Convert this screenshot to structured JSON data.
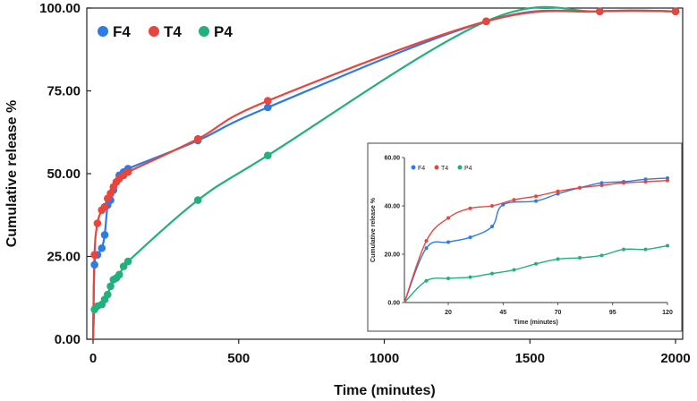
{
  "chart_data": [
    {
      "type": "line",
      "xlabel": "Time (minutes)",
      "ylabel": "Cumulative release %",
      "xlim": [
        0,
        2000
      ],
      "ylim": [
        0,
        100
      ],
      "xticks": [
        0,
        500,
        1000,
        1500,
        2000
      ],
      "xtick_labels": [
        "0",
        "500",
        "1000",
        "1500",
        "2000"
      ],
      "yticks": [
        0,
        25,
        50,
        75,
        100
      ],
      "ytick_labels": [
        "0.00",
        "25.00",
        "50.00",
        "75.00",
        "100.00"
      ],
      "legend_position": "top-left",
      "series": [
        {
          "name": "F4",
          "color": "#2e7be6",
          "points": [
            [
              0,
              0
            ],
            [
              5,
              22.5
            ],
            [
              15,
              25.5
            ],
            [
              30,
              27.5
            ],
            [
              40,
              31.5
            ],
            [
              50,
              40.5
            ],
            [
              60,
              42
            ],
            [
              70,
              45
            ],
            [
              80,
              47.5
            ],
            [
              90,
              49.5
            ],
            [
              105,
              50.5
            ],
            [
              120,
              51.5
            ],
            [
              360,
              60
            ],
            [
              600,
              70
            ],
            [
              1350,
              96
            ],
            [
              1740,
              99
            ],
            [
              2000,
              99
            ]
          ]
        },
        {
          "name": "T4",
          "color": "#e8453c",
          "points": [
            [
              0,
              0
            ],
            [
              5,
              25.5
            ],
            [
              15,
              35
            ],
            [
              30,
              39
            ],
            [
              40,
              40
            ],
            [
              50,
              42.5
            ],
            [
              60,
              44
            ],
            [
              70,
              46
            ],
            [
              80,
              47.5
            ],
            [
              90,
              48.5
            ],
            [
              105,
              49.5
            ],
            [
              120,
              50.5
            ],
            [
              360,
              60.5
            ],
            [
              600,
              72
            ],
            [
              1350,
              96
            ],
            [
              1740,
              99
            ],
            [
              2000,
              99
            ]
          ]
        },
        {
          "name": "P4",
          "color": "#22b07d",
          "points": [
            [
              0,
              0
            ],
            [
              5,
              9
            ],
            [
              15,
              10
            ],
            [
              30,
              10.5
            ],
            [
              40,
              12
            ],
            [
              50,
              13.5
            ],
            [
              60,
              16
            ],
            [
              70,
              18
            ],
            [
              80,
              18.5
            ],
            [
              90,
              19.5
            ],
            [
              105,
              22
            ],
            [
              120,
              23.5
            ],
            [
              360,
              42
            ],
            [
              600,
              55.5
            ],
            [
              1350,
              96
            ],
            [
              1740,
              99
            ],
            [
              2000,
              99
            ]
          ]
        }
      ]
    },
    {
      "type": "line",
      "role": "inset",
      "xlabel": "Time (minutes)",
      "ylabel": "Cumulative release %",
      "xlim": [
        0,
        120
      ],
      "ylim": [
        0,
        60
      ],
      "xticks": [
        20,
        45,
        70,
        95,
        120
      ],
      "xtick_labels": [
        "20",
        "45",
        "70",
        "95",
        "120"
      ],
      "yticks": [
        0,
        20,
        40,
        60
      ],
      "ytick_labels": [
        "0.00",
        "20.00",
        "40.00",
        "60.00"
      ],
      "legend_position": "top-left",
      "series": [
        {
          "name": "F4",
          "color": "#2e7be6",
          "points": [
            [
              0,
              0
            ],
            [
              10,
              22.5
            ],
            [
              20,
              25
            ],
            [
              30,
              27
            ],
            [
              40,
              31.5
            ],
            [
              45,
              40.5
            ],
            [
              60,
              42
            ],
            [
              70,
              45
            ],
            [
              80,
              47.5
            ],
            [
              90,
              49.5
            ],
            [
              100,
              50
            ],
            [
              110,
              51
            ],
            [
              120,
              51.5
            ]
          ]
        },
        {
          "name": "T4",
          "color": "#e8453c",
          "points": [
            [
              0,
              0
            ],
            [
              10,
              25.5
            ],
            [
              20,
              35
            ],
            [
              30,
              39
            ],
            [
              40,
              40
            ],
            [
              50,
              42.5
            ],
            [
              60,
              44
            ],
            [
              70,
              46
            ],
            [
              80,
              47.5
            ],
            [
              90,
              48.5
            ],
            [
              100,
              49.5
            ],
            [
              110,
              50
            ],
            [
              120,
              50.5
            ]
          ]
        },
        {
          "name": "P4",
          "color": "#22b07d",
          "points": [
            [
              0,
              0
            ],
            [
              10,
              9
            ],
            [
              20,
              10
            ],
            [
              30,
              10.5
            ],
            [
              40,
              12
            ],
            [
              50,
              13.5
            ],
            [
              60,
              16
            ],
            [
              70,
              18
            ],
            [
              80,
              18.5
            ],
            [
              90,
              19.5
            ],
            [
              100,
              22
            ],
            [
              110,
              22
            ],
            [
              120,
              23.5
            ]
          ]
        }
      ]
    }
  ]
}
